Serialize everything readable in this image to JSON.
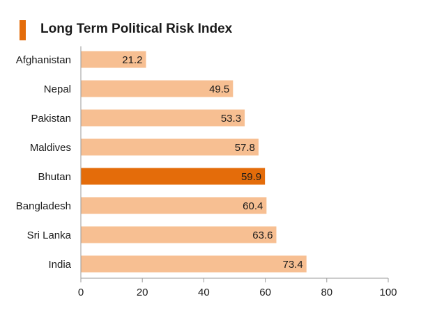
{
  "chart_data": {
    "type": "bar",
    "orientation": "horizontal",
    "title": "Long Term Political Risk Index",
    "categories": [
      "Afghanistan",
      "Nepal",
      "Pakistan",
      "Maldives",
      "Bhutan",
      "Bangladesh",
      "Sri Lanka",
      "India"
    ],
    "values": [
      21.2,
      49.5,
      53.3,
      57.8,
      59.9,
      60.4,
      63.6,
      73.4
    ],
    "data_labels": [
      "21.2",
      "49.5",
      "53.3",
      "57.8",
      "59.9",
      "60.4",
      "63.6",
      "73.4"
    ],
    "highlight_category": "Bhutan",
    "xlim": [
      0,
      100
    ],
    "xticks": [
      0,
      20,
      40,
      60,
      80,
      100
    ],
    "xtick_labels": [
      "0",
      "20",
      "40",
      "60",
      "80",
      "100"
    ],
    "xlabel": "",
    "ylabel": "",
    "grid": false,
    "legend": "none",
    "colors": {
      "bar": "#f7bf92",
      "highlight": "#e46c0a",
      "title_marker": "#e46c0a",
      "text": "#1a1a1a",
      "axis": "#9a9a9a"
    }
  }
}
